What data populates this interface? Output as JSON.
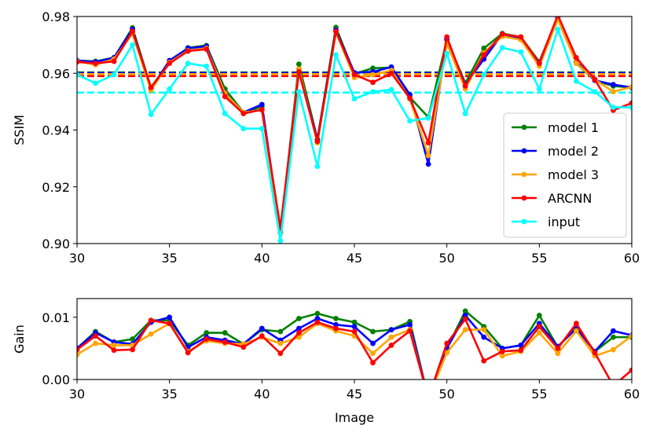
{
  "chart_data": [
    {
      "type": "line",
      "title": "",
      "xlabel": "",
      "ylabel": "SSIM",
      "xlim": [
        30,
        60
      ],
      "ylim": [
        0.9,
        0.98
      ],
      "xticks": [
        "30",
        "35",
        "40",
        "45",
        "50",
        "55",
        "60"
      ],
      "yticks": [
        "0.90",
        "0.92",
        "0.94",
        "0.96",
        "0.98"
      ],
      "legend": "bottom-right",
      "grid": false,
      "x": [
        30,
        31,
        32,
        33,
        34,
        35,
        36,
        37,
        38,
        39,
        40,
        41,
        42,
        43,
        44,
        45,
        46,
        47,
        48,
        49,
        50,
        51,
        52,
        53,
        54,
        55,
        56,
        57,
        58,
        59,
        60
      ],
      "series": [
        {
          "name": "model 1",
          "color": "#008000",
          "mean": 0.9603,
          "values": [
            0.9645,
            0.9642,
            0.9655,
            0.976,
            0.955,
            0.964,
            0.969,
            0.9698,
            0.9545,
            0.9462,
            0.9482,
            0.904,
            0.9632,
            0.9368,
            0.9762,
            0.9598,
            0.9618,
            0.962,
            0.9515,
            0.9445,
            0.9718,
            0.9565,
            0.9688,
            0.974,
            0.9728,
            0.964,
            0.98,
            0.9635,
            0.9575,
            0.9555,
            0.955
          ]
        },
        {
          "name": "model 2",
          "color": "#0000ff",
          "mean": 0.9601,
          "values": [
            0.9645,
            0.964,
            0.9655,
            0.9755,
            0.9545,
            0.9645,
            0.9688,
            0.9695,
            0.9532,
            0.9462,
            0.949,
            0.904,
            0.9615,
            0.9365,
            0.9752,
            0.9602,
            0.9605,
            0.9622,
            0.9525,
            0.928,
            0.972,
            0.956,
            0.965,
            0.9738,
            0.9722,
            0.9638,
            0.9798,
            0.964,
            0.9575,
            0.956,
            0.955
          ]
        },
        {
          "name": "model 3",
          "color": "#ffa500",
          "mean": 0.9597,
          "values": [
            0.9642,
            0.963,
            0.965,
            0.974,
            0.954,
            0.9638,
            0.968,
            0.9688,
            0.953,
            0.9462,
            0.947,
            0.9035,
            0.9615,
            0.9355,
            0.9745,
            0.9585,
            0.9595,
            0.961,
            0.951,
            0.931,
            0.9705,
            0.9545,
            0.9672,
            0.973,
            0.9718,
            0.9625,
            0.979,
            0.9635,
            0.9578,
            0.9535,
            0.9552
          ]
        },
        {
          "name": "ARCNN",
          "color": "#ff0000",
          "mean": 0.959,
          "values": [
            0.964,
            0.9635,
            0.9642,
            0.9748,
            0.955,
            0.9635,
            0.9678,
            0.9685,
            0.9518,
            0.9458,
            0.9472,
            0.9055,
            0.9605,
            0.936,
            0.9748,
            0.9595,
            0.9568,
            0.96,
            0.9512,
            0.9355,
            0.9728,
            0.9555,
            0.9665,
            0.9738,
            0.9728,
            0.9635,
            0.9805,
            0.9655,
            0.9578,
            0.947,
            0.9495
          ]
        },
        {
          "name": "input",
          "color": "#00ffff",
          "mean": 0.9532,
          "values": [
            0.9595,
            0.9565,
            0.9595,
            0.97,
            0.9455,
            0.9545,
            0.9635,
            0.9625,
            0.9458,
            0.9405,
            0.9405,
            0.901,
            0.9535,
            0.9272,
            0.9665,
            0.951,
            0.9535,
            0.9542,
            0.9432,
            0.9442,
            0.967,
            0.9458,
            0.9595,
            0.969,
            0.9675,
            0.9545,
            0.9755,
            0.9572,
            0.9535,
            0.948,
            0.948
          ]
        }
      ]
    },
    {
      "type": "line",
      "title": "",
      "xlabel": "Image",
      "ylabel": "Gain",
      "xlim": [
        30,
        60
      ],
      "ylim": [
        0.0,
        0.013
      ],
      "xticks": [
        "30",
        "35",
        "40",
        "45",
        "50",
        "55",
        "60"
      ],
      "yticks": [
        "0.00",
        "0.01"
      ],
      "grid": false,
      "x": [
        30,
        31,
        32,
        33,
        34,
        35,
        36,
        37,
        38,
        39,
        40,
        41,
        42,
        43,
        44,
        45,
        46,
        47,
        48,
        49,
        50,
        51,
        52,
        53,
        54,
        55,
        56,
        57,
        58,
        59,
        60
      ],
      "series": [
        {
          "name": "model 1",
          "color": "#008000",
          "values": [
            0.005,
            0.0077,
            0.006,
            0.0065,
            0.0095,
            0.0095,
            0.0055,
            0.0075,
            0.0075,
            0.0057,
            0.008,
            0.0077,
            0.0098,
            0.0106,
            0.0098,
            0.0092,
            0.0077,
            0.008,
            0.0093,
            -0.003,
            0.005,
            0.011,
            0.0085,
            0.005,
            0.0055,
            0.0103,
            0.0052,
            0.0085,
            0.0045,
            0.0068,
            0.0068
          ]
        },
        {
          "name": "model 2",
          "color": "#0000ff",
          "values": [
            0.005,
            0.0075,
            0.006,
            0.0057,
            0.0092,
            0.01,
            0.0052,
            0.0068,
            0.0063,
            0.0057,
            0.0082,
            0.0063,
            0.0082,
            0.0098,
            0.0088,
            0.0085,
            0.0058,
            0.008,
            0.0088,
            -0.003,
            0.005,
            0.0103,
            0.0068,
            0.005,
            0.0055,
            0.009,
            0.0053,
            0.0082,
            0.0045,
            0.0078,
            0.0071
          ]
        },
        {
          "name": "model 3",
          "color": "#ffa500",
          "values": [
            0.004,
            0.0058,
            0.0055,
            0.0055,
            0.0073,
            0.009,
            0.0045,
            0.0062,
            0.0058,
            0.0057,
            0.0068,
            0.0058,
            0.0068,
            0.009,
            0.0078,
            0.007,
            0.0042,
            0.0068,
            0.008,
            -0.003,
            0.0043,
            0.008,
            0.008,
            0.0038,
            0.0045,
            0.0075,
            0.0042,
            0.0078,
            0.0038,
            0.0048,
            0.007
          ]
        },
        {
          "name": "ARCNN",
          "color": "#ff0000",
          "values": [
            0.0048,
            0.007,
            0.0047,
            0.0048,
            0.0095,
            0.009,
            0.0043,
            0.0065,
            0.006,
            0.0052,
            0.007,
            0.0042,
            0.0075,
            0.0092,
            0.0082,
            0.0077,
            0.0027,
            0.0055,
            0.0078,
            -0.003,
            0.0058,
            0.0097,
            0.003,
            0.0045,
            0.0047,
            0.0085,
            0.005,
            0.009,
            0.0043,
            -0.001,
            0.0015
          ]
        }
      ]
    }
  ]
}
